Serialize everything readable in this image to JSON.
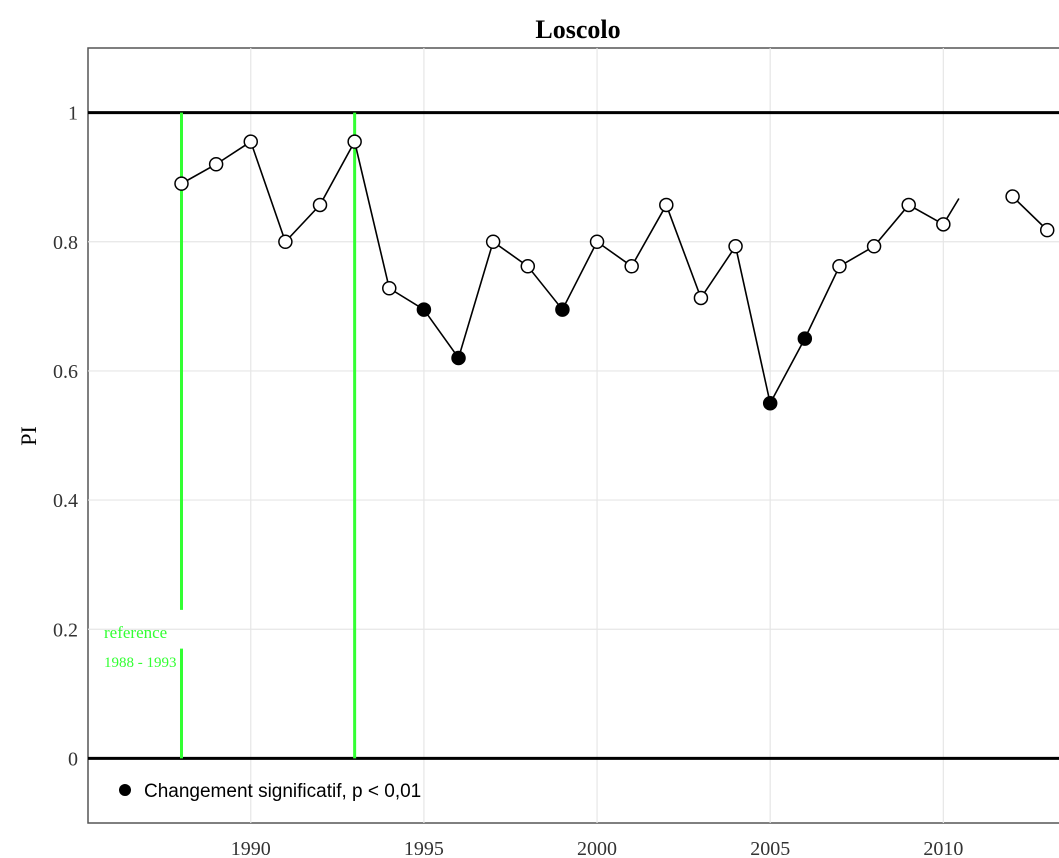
{
  "chart_data": {
    "type": "scatter",
    "title": "Loscolo",
    "xlabel": "",
    "ylabel": "PI",
    "xlim": [
      1985.3,
      2013.6
    ],
    "ylim": [
      -0.1,
      1.1
    ],
    "x_ticks": [
      1990,
      1995,
      2000,
      2005,
      2010
    ],
    "x_tick_labels": [
      "1990",
      "1995",
      "2000",
      "2005",
      "2010"
    ],
    "y_ticks": [
      0,
      0.2,
      0.4,
      0.6,
      0.8,
      1
    ],
    "y_tick_labels": [
      "0",
      "0.2",
      "0.4",
      "0.6",
      "0.8",
      "1"
    ],
    "grid": true,
    "reference_lines": [
      {
        "axis": "y",
        "value": 1,
        "color": "#000000"
      },
      {
        "axis": "y",
        "value": 0,
        "color": "#000000"
      }
    ],
    "reference_period": {
      "start": 1988,
      "end": 1993,
      "label_line1": "reference",
      "label_line2": "1988 - 1993",
      "color": "#33ff33"
    },
    "series": [
      {
        "name": "",
        "line_color": "#000000",
        "segments": [
          [
            {
              "x": 1988,
              "y": 0.89,
              "significant": false
            },
            {
              "x": 1989,
              "y": 0.92,
              "significant": false
            },
            {
              "x": 1990,
              "y": 0.955,
              "significant": false
            },
            {
              "x": 1991,
              "y": 0.8,
              "significant": false
            },
            {
              "x": 1992,
              "y": 0.857,
              "significant": false
            },
            {
              "x": 1993,
              "y": 0.955,
              "significant": false
            },
            {
              "x": 1994,
              "y": 0.728,
              "significant": false
            },
            {
              "x": 1995,
              "y": 0.695,
              "significant": true
            },
            {
              "x": 1996,
              "y": 0.62,
              "significant": true
            },
            {
              "x": 1997,
              "y": 0.8,
              "significant": false
            },
            {
              "x": 1998,
              "y": 0.762,
              "significant": false
            },
            {
              "x": 1999,
              "y": 0.695,
              "significant": true
            },
            {
              "x": 2000,
              "y": 0.8,
              "significant": false
            },
            {
              "x": 2001,
              "y": 0.762,
              "significant": false
            },
            {
              "x": 2002,
              "y": 0.857,
              "significant": false
            },
            {
              "x": 2003,
              "y": 0.713,
              "significant": false
            },
            {
              "x": 2004,
              "y": 0.793,
              "significant": false
            },
            {
              "x": 2005,
              "y": 0.55,
              "significant": true
            },
            {
              "x": 2006,
              "y": 0.65,
              "significant": true
            },
            {
              "x": 2007,
              "y": 0.762,
              "significant": false
            },
            {
              "x": 2008,
              "y": 0.793,
              "significant": false
            },
            {
              "x": 2009,
              "y": 0.857,
              "significant": false
            },
            {
              "x": 2010,
              "y": 0.827,
              "significant": false
            },
            {
              "x": 2010.45,
              "y": 0.867,
              "marker": false
            }
          ],
          [
            {
              "x": 2012,
              "y": 0.87,
              "significant": false
            },
            {
              "x": 2013,
              "y": 0.818,
              "significant": false
            }
          ]
        ]
      }
    ],
    "legend": {
      "placement": "bottom-left",
      "entries": [
        {
          "label": "Changement significatif, p < 0,01",
          "marker": "filled-circle"
        }
      ]
    }
  }
}
